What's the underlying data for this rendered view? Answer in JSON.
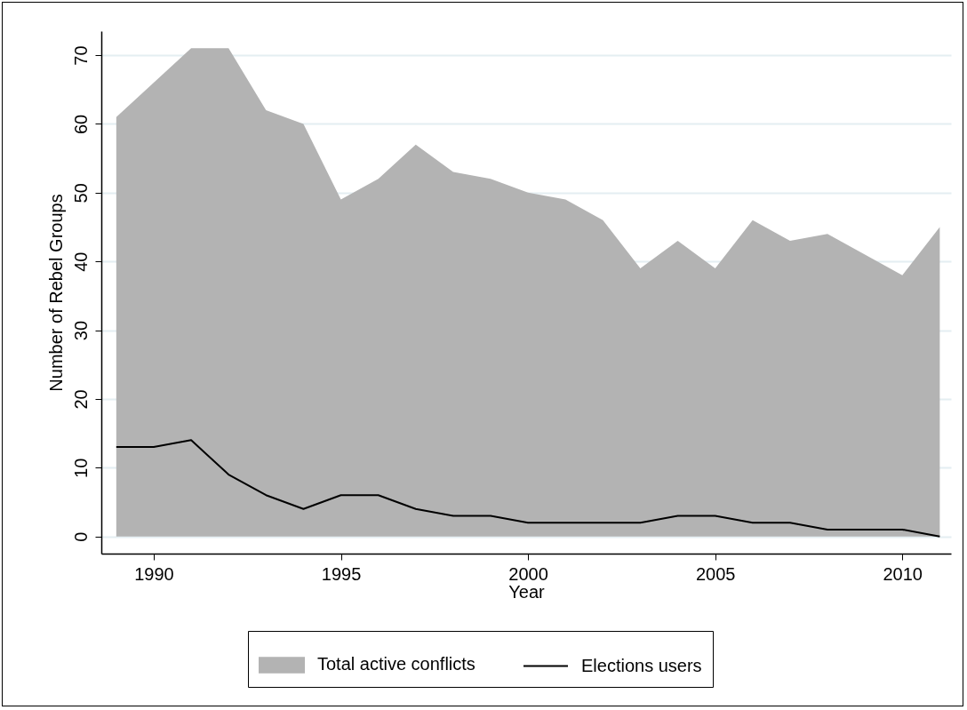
{
  "chart_data": {
    "type": "area",
    "xlabel": "Year",
    "ylabel": "Number of Rebel Groups",
    "x": [
      1989,
      1990,
      1991,
      1992,
      1993,
      1994,
      1995,
      1996,
      1997,
      1998,
      1999,
      2000,
      2001,
      2002,
      2003,
      2004,
      2005,
      2006,
      2007,
      2008,
      2009,
      2010,
      2011
    ],
    "series": [
      {
        "name": "Total active conflicts",
        "type": "area",
        "color": "#b3b3b3",
        "values": [
          61,
          66,
          71,
          71,
          62,
          60,
          49,
          52,
          57,
          53,
          52,
          50,
          49,
          46,
          39,
          43,
          39,
          46,
          43,
          44,
          41,
          38,
          45
        ]
      },
      {
        "name": "Elections users",
        "type": "line",
        "color": "#000000",
        "values": [
          13,
          13,
          14,
          9,
          6,
          4,
          6,
          6,
          4,
          3,
          3,
          2,
          2,
          2,
          2,
          3,
          3,
          2,
          2,
          1,
          1,
          1,
          0
        ]
      }
    ],
    "xlim": [
      1988.6,
      2011.3
    ],
    "xticks": [
      1990,
      1995,
      2000,
      2005,
      2010
    ],
    "ylim": [
      -2.5,
      73.5
    ],
    "yticks": [
      0,
      10,
      20,
      30,
      40,
      50,
      60,
      70
    ],
    "grid": "y",
    "legend": "bottom"
  }
}
